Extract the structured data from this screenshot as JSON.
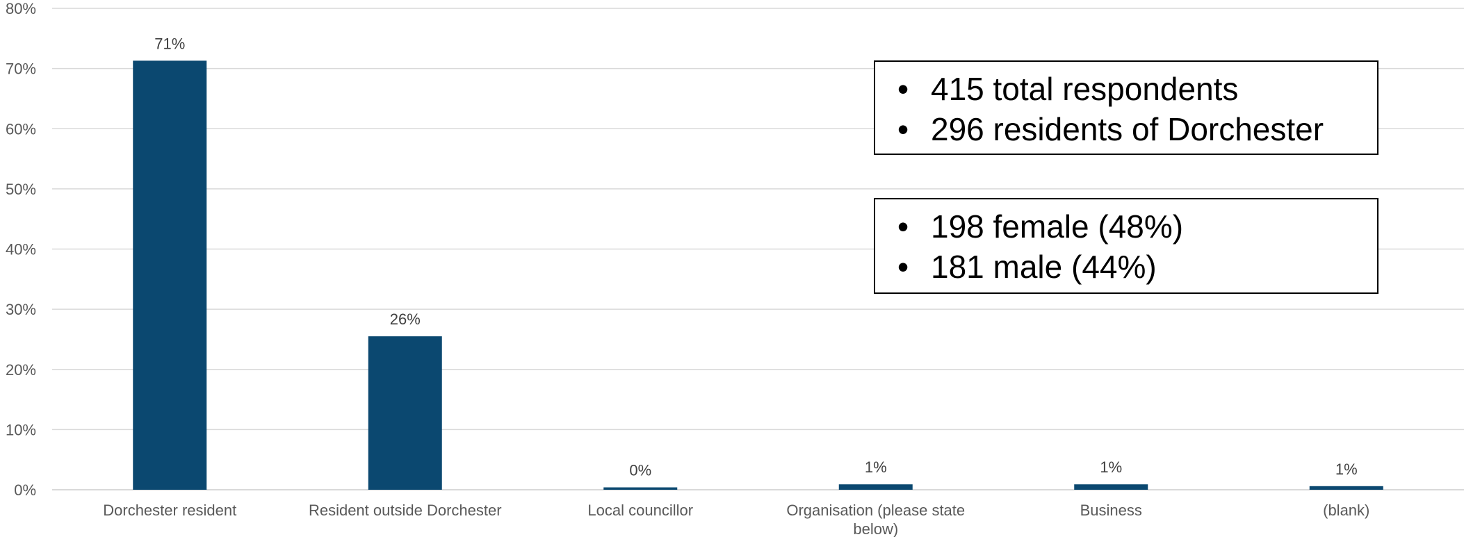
{
  "chart_data": {
    "type": "bar",
    "categories": [
      "Dorchester resident",
      "Resident outside Dorchester",
      "Local councillor",
      "Organisation (please state below)",
      "Business",
      "(blank)"
    ],
    "values": [
      71.3,
      25.5,
      0.4,
      0.9,
      0.9,
      0.6
    ],
    "data_labels": [
      "71%",
      "26%",
      "0%",
      "1%",
      "1%",
      "1%"
    ],
    "ylim": [
      0,
      80
    ],
    "yticks": [
      "0%",
      "10%",
      "20%",
      "30%",
      "40%",
      "50%",
      "60%",
      "70%",
      "80%"
    ],
    "title": "",
    "xlabel": "",
    "ylabel": "",
    "grid": true,
    "bar_color": "#0B4870",
    "grid_color": "#D9D9D9"
  },
  "notes": {
    "box1": [
      "415 total respondents",
      "296 residents of Dorchester"
    ],
    "box2": [
      "198 female (48%)",
      "181 male (44%)"
    ],
    "bullet": "•"
  }
}
